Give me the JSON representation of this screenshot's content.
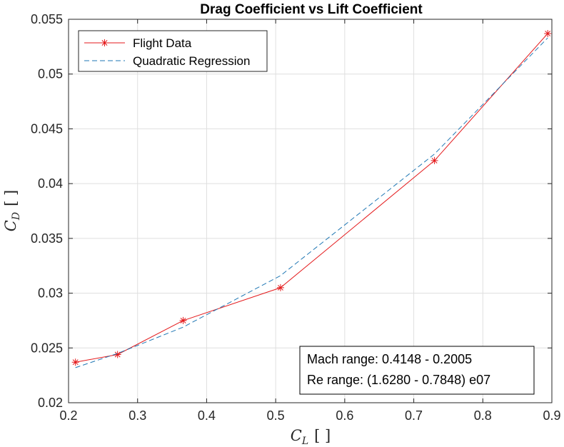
{
  "chart_data": {
    "type": "line",
    "title": "Drag Coefficient vs Lift Coefficient",
    "xlabel": {
      "main": "C",
      "sub": "L",
      "bracket": "[ ]"
    },
    "ylabel": {
      "main": "C",
      "sub": "D",
      "bracket": "[ ]"
    },
    "xlim": [
      0.2,
      0.9
    ],
    "ylim": [
      0.02,
      0.055
    ],
    "xticks": [
      0.2,
      0.3,
      0.4,
      0.5,
      0.6,
      0.7,
      0.8,
      0.9
    ],
    "xtick_labels": [
      "0.2",
      "0.3",
      "0.4",
      "0.5",
      "0.6",
      "0.7",
      "0.8",
      "0.9"
    ],
    "yticks": [
      0.02,
      0.025,
      0.03,
      0.035,
      0.04,
      0.045,
      0.05,
      0.055
    ],
    "ytick_labels": [
      "0.02",
      "0.025",
      "0.03",
      "0.035",
      "0.04",
      "0.045",
      "0.05",
      "0.055"
    ],
    "grid": true,
    "legend_position": "top-left",
    "series": [
      {
        "name": "Flight Data",
        "color": "#e41a1c",
        "style": "solid",
        "marker": "asterisk",
        "x": [
          0.21,
          0.271,
          0.366,
          0.507,
          0.73,
          0.894
        ],
        "y": [
          0.0237,
          0.0244,
          0.0275,
          0.0305,
          0.0421,
          0.0537
        ]
      },
      {
        "name": "Quadratic Regression",
        "color": "#1f77b4",
        "style": "dashed",
        "marker": "none",
        "x": [
          0.21,
          0.271,
          0.366,
          0.507,
          0.73,
          0.894
        ],
        "y": [
          0.0232,
          0.0245,
          0.0269,
          0.0316,
          0.0427,
          0.0533
        ]
      }
    ],
    "annotation": {
      "lines": [
        "Mach range: 0.4148 - 0.2005",
        "Re range: (1.6280 - 0.7848) e07"
      ],
      "position": "bottom-right"
    }
  }
}
